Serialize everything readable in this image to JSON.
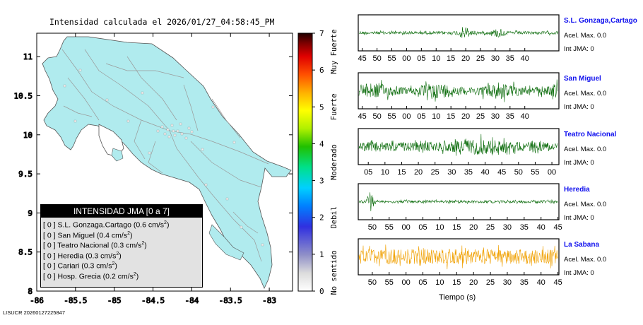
{
  "map": {
    "title": "Intensidad calculada el 2026/01/27_04:58:45_PM",
    "xticks": [
      "-86",
      "-85.5",
      "-85",
      "-84.5",
      "-84",
      "-83.5",
      "-83"
    ],
    "yticks": [
      "11",
      "10.5",
      "10",
      "9.5",
      "9",
      "8.5",
      "8"
    ],
    "xlim": [
      -86,
      -82.7
    ],
    "ylim": [
      8,
      11.3
    ]
  },
  "colorbar": {
    "ticks": [
      "0",
      "1",
      "2",
      "3",
      "4",
      "5",
      "6",
      "7"
    ],
    "labels": [
      "No sentido",
      "Debil",
      "Moderado",
      "Fuerte",
      "Muy Fuerte"
    ]
  },
  "legend": {
    "title": "INTENSIDAD JMA [0 a 7]",
    "rows": [
      {
        "level": "[ 0 ]",
        "station": "S.L. Gonzaga.Cartago",
        "value": "(0.6 cm/s",
        "sup": "2",
        "close": ")"
      },
      {
        "level": "[ 0 ]",
        "station": "San Miguel",
        "value": "(0.4 cm/s",
        "sup": "2",
        "close": ")"
      },
      {
        "level": "[ 0 ]",
        "station": "Teatro Nacional",
        "value": "(0.3 cm/s",
        "sup": "2",
        "close": ")"
      },
      {
        "level": "[ 0 ]",
        "station": "Heredia",
        "value": "(0.3 cm/s",
        "sup": "2",
        "close": ")"
      },
      {
        "level": "[ 0 ]",
        "station": "Cariari",
        "value": "(0.3 cm/s",
        "sup": "2",
        "close": ")"
      },
      {
        "level": "[ 0 ]",
        "station": "Hosp. Grecia",
        "value": "(0.2 cm/s",
        "sup": "2",
        "close": ")"
      }
    ]
  },
  "traces": [
    {
      "name": "S.L. Gonzaga,Cartago",
      "acel": "Acel. Max. 0.0",
      "jma": "Int JMA: 0",
      "color": "#0a6b0a",
      "ticks": [
        "45",
        "50",
        "55",
        "00",
        "05",
        "10",
        "15",
        "20",
        "25",
        "30",
        "35",
        "40"
      ]
    },
    {
      "name": "San Miguel",
      "acel": "Acel. Max. 0.0",
      "jma": "Int JMA: 0",
      "color": "#0a6b0a",
      "ticks": [
        "45",
        "50",
        "55",
        "00",
        "05",
        "10",
        "15",
        "20",
        "25",
        "30",
        "35",
        "40"
      ]
    },
    {
      "name": "Teatro Nacional",
      "acel": "Acel. Max. 0.0",
      "jma": "Int JMA: 0",
      "color": "#0a6b0a",
      "ticks": [
        "05",
        "10",
        "15",
        "20",
        "25",
        "30",
        "35",
        "40",
        "45",
        "50",
        "55",
        "00"
      ]
    },
    {
      "name": "Heredia",
      "acel": "Acel. Max. 0.0",
      "jma": "Int JMA: 0",
      "color": "#0a6b0a",
      "ticks": [
        "50",
        "55",
        "00",
        "05",
        "10",
        "15",
        "20",
        "25",
        "30",
        "35",
        "40",
        "45"
      ]
    },
    {
      "name": "La Sabana",
      "acel": "Acel. Max. 0.0",
      "jma": "Int JMA: 0",
      "color": "#f0a000",
      "ticks": [
        "50",
        "55",
        "00",
        "05",
        "10",
        "15",
        "20",
        "25",
        "30",
        "35",
        "40",
        "45"
      ]
    }
  ],
  "xlabel": "Tiempo (s)",
  "footer": "LISUCR 20260127225847",
  "chart_data": [
    {
      "type": "scatter",
      "title": "Intensidad calculada el 2026/01/27_04:58:45_PM",
      "xlabel": "",
      "ylabel": "",
      "xlim": [
        -86,
        -82.7
      ],
      "ylim": [
        8,
        11.3
      ],
      "series": [
        {
          "name": "INTENSIDAD JMA [0 a 7]",
          "points": [
            {
              "station": "S.L. Gonzaga.Cartago",
              "intensity": 0,
              "accel": 0.6
            },
            {
              "station": "San Miguel",
              "intensity": 0,
              "accel": 0.4
            },
            {
              "station": "Teatro Nacional",
              "intensity": 0,
              "accel": 0.3
            },
            {
              "station": "Heredia",
              "intensity": 0,
              "accel": 0.3
            },
            {
              "station": "Cariari",
              "intensity": 0,
              "accel": 0.3
            },
            {
              "station": "Hosp. Grecia",
              "intensity": 0,
              "accel": 0.2
            }
          ]
        }
      ]
    },
    {
      "type": "line",
      "xlabel": "Tiempo (s)",
      "series": [
        {
          "name": "S.L. Gonzaga,Cartago"
        },
        {
          "name": "San Miguel"
        },
        {
          "name": "Teatro Nacional"
        },
        {
          "name": "Heredia"
        },
        {
          "name": "La Sabana"
        }
      ]
    }
  ]
}
